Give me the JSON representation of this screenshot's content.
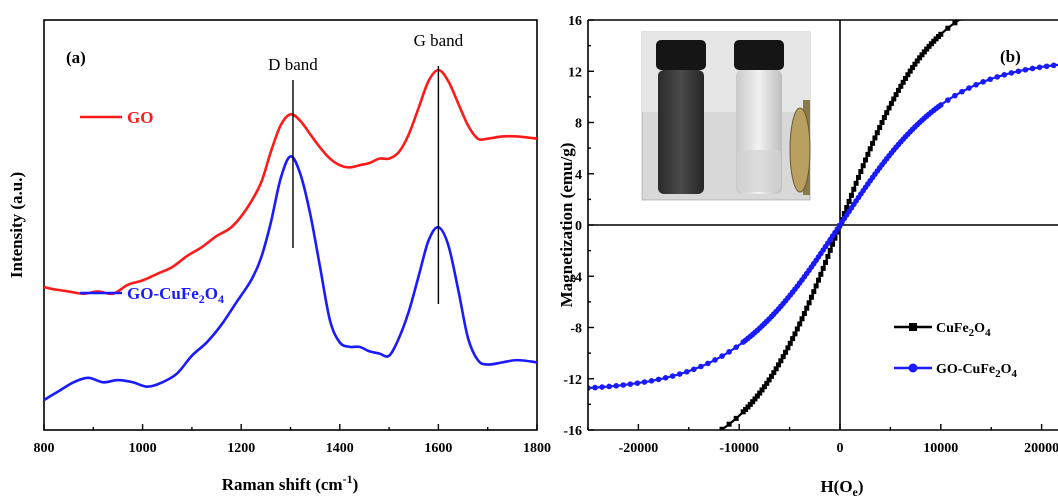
{
  "chart_data": [
    {
      "type": "line",
      "panel_label": "(a)",
      "xlabel": "Raman shift (cm",
      "xlabel_sup": "-1",
      "xlabel_end": ")",
      "ylabel": "Intensity (a.u.)",
      "xlim": [
        800,
        1800
      ],
      "xticks": [
        800,
        1000,
        1200,
        1400,
        1600,
        1800
      ],
      "y_ticks_shown": false,
      "annotations": [
        {
          "text": "D band",
          "x": 1305
        },
        {
          "text": "G band",
          "x": 1600
        }
      ],
      "series": [
        {
          "name": "GO",
          "color": "#ff1a1a",
          "x": [
            800,
            820,
            850,
            880,
            910,
            940,
            970,
            1000,
            1030,
            1060,
            1090,
            1120,
            1150,
            1180,
            1210,
            1240,
            1260,
            1280,
            1300,
            1320,
            1340,
            1360,
            1380,
            1400,
            1420,
            1440,
            1460,
            1480,
            1500,
            1520,
            1540,
            1560,
            1580,
            1600,
            1620,
            1640,
            1660,
            1680,
            1700,
            1730,
            1760,
            1800
          ],
          "values": [
            0.255,
            0.25,
            0.245,
            0.24,
            0.245,
            0.24,
            0.26,
            0.27,
            0.285,
            0.3,
            0.325,
            0.345,
            0.37,
            0.39,
            0.43,
            0.49,
            0.56,
            0.62,
            0.645,
            0.63,
            0.6,
            0.57,
            0.545,
            0.53,
            0.525,
            0.53,
            0.535,
            0.545,
            0.545,
            0.56,
            0.6,
            0.66,
            0.72,
            0.745,
            0.72,
            0.67,
            0.62,
            0.59,
            0.59,
            0.595,
            0.595,
            0.59
          ]
        },
        {
          "name_prefix": "GO-CuFe",
          "name_sub1": "2",
          "name_mid": "O",
          "name_sub2": "4",
          "color": "#1a1aff",
          "x": [
            800,
            830,
            860,
            890,
            920,
            950,
            980,
            1010,
            1040,
            1070,
            1100,
            1130,
            1160,
            1190,
            1220,
            1240,
            1260,
            1280,
            1300,
            1320,
            1340,
            1360,
            1380,
            1400,
            1420,
            1440,
            1460,
            1480,
            1500,
            1520,
            1540,
            1560,
            1580,
            1600,
            1620,
            1640,
            1660,
            1680,
            1700,
            1730,
            1760,
            1800
          ],
          "values": [
            0.0,
            0.02,
            0.04,
            0.05,
            0.04,
            0.045,
            0.04,
            0.03,
            0.04,
            0.06,
            0.1,
            0.13,
            0.17,
            0.22,
            0.27,
            0.32,
            0.4,
            0.5,
            0.55,
            0.51,
            0.42,
            0.3,
            0.18,
            0.13,
            0.12,
            0.12,
            0.11,
            0.105,
            0.1,
            0.14,
            0.2,
            0.28,
            0.36,
            0.39,
            0.35,
            0.25,
            0.14,
            0.09,
            0.08,
            0.085,
            0.09,
            0.085
          ]
        }
      ]
    },
    {
      "type": "line",
      "panel_label": "(b)",
      "xlabel": "H(O",
      "xlabel_sub": "e",
      "xlabel_end": ")",
      "ylabel": "Magnetization (emu/g)",
      "xlim": [
        -25000,
        25000
      ],
      "ylim": [
        -16,
        16
      ],
      "xticks": [
        -20000,
        -10000,
        0,
        10000,
        20000
      ],
      "yticks": [
        -16,
        -12,
        -8,
        -4,
        0,
        4,
        8,
        12,
        16
      ],
      "inset": "photo-of-two-vials",
      "series": [
        {
          "name_prefix": "CuFe",
          "name_sub1": "2",
          "name_mid": "O",
          "name_sub2": "4",
          "color": "#000000",
          "marker": "square",
          "Ms": 18.5,
          "a": 9000
        },
        {
          "name_prefix": "GO-CuFe",
          "name_sub1": "2",
          "name_mid": "O",
          "name_sub2": "4",
          "color": "#1a1aff",
          "marker": "circle",
          "Ms": 13.0,
          "a": 11000
        }
      ]
    }
  ]
}
